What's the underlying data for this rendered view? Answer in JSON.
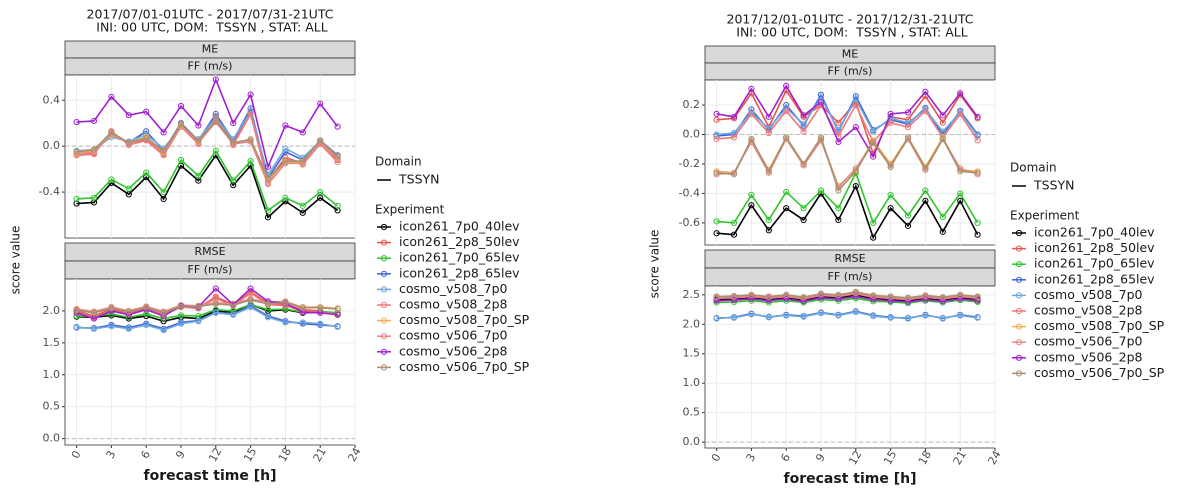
{
  "chart_data": [
    {
      "type": "line",
      "title": "2017/07/01-01UTC - 2017/07/31-21UTC",
      "subtitle": " INI: 00 UTC, DOM:  TSSYN , STAT: ALL",
      "xlabel": "forecast time [h]",
      "ylabel": "score value",
      "x": [
        0,
        1.5,
        3,
        4.5,
        6,
        7.5,
        9,
        10.5,
        12,
        13.5,
        15,
        16.5,
        18,
        19.5,
        21,
        22.5
      ],
      "xlim": [
        -1,
        24
      ],
      "xticks": [
        0,
        3,
        6,
        9,
        12,
        15,
        18,
        21,
        24
      ],
      "legend": {
        "domain_title": "Domain",
        "domain": "TSSYN",
        "title": "Experiment"
      },
      "series": [
        {
          "name": "icon261_7p0_40lev",
          "color": "#000000"
        },
        {
          "name": "icon261_2p8_50lev",
          "color": "#e8544e"
        },
        {
          "name": "icon261_7p0_65lev",
          "color": "#2ec52e"
        },
        {
          "name": "icon261_2p8_65lev",
          "color": "#3c64d8"
        },
        {
          "name": "cosmo_v508_7p0",
          "color": "#6fa8dc"
        },
        {
          "name": "cosmo_v508_2p8",
          "color": "#f07878"
        },
        {
          "name": "cosmo_v508_7p0_SP",
          "color": "#f0b050"
        },
        {
          "name": "cosmo_v506_7p0",
          "color": "#e88888"
        },
        {
          "name": "cosmo_v506_2p8",
          "color": "#a020d0"
        },
        {
          "name": "cosmo_v506_7p0_SP",
          "color": "#a89070"
        }
      ],
      "facets": [
        {
          "title": "ME",
          "unit": "FF (m/s)",
          "ylim": [
            -0.8,
            0.62
          ],
          "yticks": [
            -0.4,
            {
              "value": 0,
              "label": "0.0"
            },
            0.4
          ],
          "values": [
            [
              -0.5,
              -0.49,
              -0.32,
              -0.42,
              -0.27,
              -0.46,
              -0.17,
              -0.3,
              -0.08,
              -0.34,
              -0.17,
              -0.62,
              -0.48,
              -0.58,
              -0.45,
              -0.56
            ],
            [
              -0.07,
              -0.06,
              0.12,
              0.02,
              0.06,
              -0.07,
              0.18,
              0.03,
              0.26,
              0.02,
              0.3,
              -0.3,
              -0.1,
              -0.15,
              0.03,
              -0.12
            ],
            [
              -0.46,
              -0.45,
              -0.29,
              -0.37,
              -0.23,
              -0.4,
              -0.12,
              -0.26,
              -0.04,
              -0.3,
              -0.13,
              -0.56,
              -0.45,
              -0.52,
              -0.4,
              -0.52
            ],
            [
              -0.05,
              -0.05,
              0.1,
              0.03,
              0.13,
              -0.04,
              0.2,
              0.05,
              0.28,
              0.05,
              0.33,
              -0.28,
              -0.05,
              -0.12,
              0.05,
              -0.08
            ],
            [
              -0.04,
              -0.03,
              0.08,
              0.04,
              0.1,
              -0.02,
              0.17,
              0.06,
              0.25,
              0.06,
              0.3,
              -0.25,
              -0.02,
              -0.1,
              0.04,
              -0.1
            ],
            [
              -0.08,
              -0.07,
              0.13,
              0.01,
              0.05,
              -0.08,
              0.17,
              0.02,
              0.24,
              0.01,
              0.28,
              -0.32,
              -0.12,
              -0.16,
              0.02,
              -0.14
            ],
            [
              -0.06,
              -0.04,
              0.1,
              0.03,
              0.08,
              -0.05,
              0.18,
              0.04,
              0.22,
              0.03,
              0.05,
              -0.3,
              -0.14,
              -0.14,
              0.05,
              -0.1
            ],
            [
              -0.07,
              -0.05,
              0.11,
              0.02,
              0.07,
              -0.06,
              0.19,
              0.03,
              0.21,
              0.02,
              0.04,
              -0.33,
              -0.15,
              -0.15,
              0.03,
              -0.11
            ],
            [
              0.21,
              0.22,
              0.43,
              0.27,
              0.3,
              0.12,
              0.35,
              0.18,
              0.58,
              0.2,
              0.45,
              -0.18,
              0.18,
              0.12,
              0.37,
              0.17
            ],
            [
              -0.05,
              -0.03,
              0.12,
              0.03,
              0.07,
              -0.04,
              0.19,
              0.05,
              0.22,
              0.03,
              0.06,
              -0.28,
              -0.13,
              -0.13,
              0.05,
              -0.09
            ]
          ]
        },
        {
          "title": "RMSE",
          "unit": "FF (m/s)",
          "ylim": [
            -0.1,
            2.5
          ],
          "yticks": [
            {
              "value": 0,
              "label": "0.0"
            },
            0.5,
            {
              "value": 1,
              "label": "1.0"
            },
            1.5,
            {
              "value": 2,
              "label": "2.0"
            }
          ],
          "values": [
            [
              1.91,
              1.9,
              1.93,
              1.88,
              1.92,
              1.84,
              1.9,
              1.88,
              2.0,
              1.98,
              2.1,
              2.0,
              2.02,
              1.97,
              1.98,
              1.96
            ],
            [
              2.0,
              1.92,
              2.03,
              1.96,
              2.04,
              1.95,
              2.08,
              2.05,
              2.22,
              2.1,
              2.3,
              2.12,
              2.1,
              2.02,
              2.0,
              1.94
            ],
            [
              1.92,
              1.92,
              1.95,
              1.9,
              1.95,
              1.88,
              1.93,
              1.92,
              2.02,
              2.0,
              2.1,
              2.02,
              2.03,
              1.98,
              1.99,
              1.97
            ],
            [
              1.74,
              1.73,
              1.78,
              1.74,
              1.8,
              1.72,
              1.82,
              1.85,
              1.98,
              1.95,
              2.08,
              1.92,
              1.84,
              1.8,
              1.78,
              1.76
            ],
            [
              1.75,
              1.72,
              1.76,
              1.72,
              1.78,
              1.7,
              1.8,
              1.84,
              1.97,
              1.94,
              2.06,
              1.9,
              1.82,
              1.82,
              1.8,
              1.75
            ],
            [
              1.98,
              1.9,
              2.0,
              1.95,
              2.02,
              1.94,
              2.06,
              2.04,
              2.2,
              2.08,
              2.28,
              2.1,
              2.08,
              2.0,
              1.98,
              1.95
            ],
            [
              2.02,
              1.98,
              2.05,
              2.0,
              2.06,
              1.98,
              2.08,
              2.08,
              2.12,
              2.1,
              2.18,
              2.12,
              2.14,
              2.06,
              2.06,
              2.04
            ],
            [
              2.03,
              1.99,
              2.06,
              2.0,
              2.07,
              1.99,
              2.09,
              2.08,
              2.13,
              2.11,
              2.19,
              2.13,
              2.15,
              2.05,
              2.05,
              2.03
            ],
            [
              1.97,
              1.88,
              2.0,
              1.94,
              2.02,
              1.92,
              2.08,
              2.06,
              2.35,
              2.1,
              2.35,
              2.15,
              2.12,
              1.98,
              1.97,
              1.94
            ],
            [
              2.01,
              1.97,
              2.04,
              1.99,
              2.05,
              1.97,
              2.07,
              2.07,
              2.11,
              2.09,
              2.17,
              2.11,
              2.13,
              2.05,
              2.05,
              2.03
            ]
          ]
        }
      ]
    },
    {
      "type": "line",
      "title": "2017/12/01-01UTC - 2017/12/31-21UTC",
      "subtitle": " INI: 00 UTC, DOM:  TSSYN , STAT: ALL",
      "xlabel": "forecast time [h]",
      "ylabel": "score value",
      "x": [
        0,
        1.5,
        3,
        4.5,
        6,
        7.5,
        9,
        10.5,
        12,
        13.5,
        15,
        16.5,
        18,
        19.5,
        21,
        22.5
      ],
      "xlim": [
        -1,
        24
      ],
      "xticks": [
        0,
        3,
        6,
        9,
        12,
        15,
        18,
        21,
        24
      ],
      "legend": {
        "domain_title": "Domain",
        "domain": "TSSYN",
        "title": "Experiment"
      },
      "series": [
        {
          "name": "icon261_7p0_40lev",
          "color": "#000000"
        },
        {
          "name": "icon261_2p8_50lev",
          "color": "#e8544e"
        },
        {
          "name": "icon261_7p0_65lev",
          "color": "#2ec52e"
        },
        {
          "name": "icon261_2p8_65lev",
          "color": "#3c64d8"
        },
        {
          "name": "cosmo_v508_7p0",
          "color": "#6fa8dc"
        },
        {
          "name": "cosmo_v508_2p8",
          "color": "#f07878"
        },
        {
          "name": "cosmo_v508_7p0_SP",
          "color": "#f0b050"
        },
        {
          "name": "cosmo_v506_7p0",
          "color": "#e88888"
        },
        {
          "name": "cosmo_v506_2p8",
          "color": "#a020d0"
        },
        {
          "name": "cosmo_v506_7p0_SP",
          "color": "#a89070"
        }
      ],
      "facets": [
        {
          "title": "ME",
          "unit": "FF (m/s)",
          "ylim": [
            -0.75,
            0.37
          ],
          "yticks": [
            -0.6,
            -0.4,
            -0.2,
            {
              "value": 0,
              "label": "0.0"
            },
            0.2
          ],
          "values": [
            [
              -0.67,
              -0.68,
              -0.48,
              -0.65,
              -0.5,
              -0.58,
              -0.4,
              -0.58,
              -0.35,
              -0.7,
              -0.5,
              -0.62,
              -0.45,
              -0.66,
              -0.45,
              -0.68
            ],
            [
              0.1,
              0.11,
              0.28,
              0.05,
              0.3,
              0.12,
              0.2,
              0.08,
              0.22,
              -0.13,
              0.12,
              0.1,
              0.26,
              0.08,
              0.27,
              0.11
            ],
            [
              -0.59,
              -0.6,
              -0.41,
              -0.58,
              -0.39,
              -0.5,
              -0.38,
              -0.5,
              -0.26,
              -0.6,
              -0.41,
              -0.55,
              -0.38,
              -0.56,
              -0.4,
              -0.6
            ],
            [
              -0.01,
              0,
              0.17,
              0.03,
              0.2,
              0.06,
              0.27,
              0.02,
              0.26,
              0.03,
              0.1,
              0.07,
              0.18,
              0,
              0.16,
              0
            ],
            [
              0,
              0.01,
              0.15,
              0.04,
              0.18,
              0.07,
              0.25,
              0.03,
              0.24,
              0.02,
              0.11,
              0.08,
              0.17,
              0.02,
              0.15,
              -0.01
            ],
            [
              -0.03,
              -0.02,
              0.14,
              0.01,
              0.16,
              0.02,
              0.2,
              -0.01,
              0.2,
              -0.05,
              0.08,
              0.05,
              0.16,
              -0.02,
              0.14,
              -0.04
            ],
            [
              -0.25,
              -0.26,
              -0.04,
              -0.24,
              -0.02,
              -0.2,
              -0.03,
              -0.35,
              -0.24,
              -0.04,
              -0.2,
              -0.02,
              -0.22,
              -0.02,
              -0.24,
              -0.25
            ],
            [
              -0.27,
              -0.26,
              -0.05,
              -0.26,
              -0.03,
              -0.21,
              -0.04,
              -0.36,
              -0.23,
              -0.06,
              -0.21,
              -0.03,
              -0.24,
              -0.03,
              -0.23,
              -0.27
            ],
            [
              0.14,
              0.12,
              0.31,
              0.12,
              0.33,
              0.13,
              0.22,
              -0.05,
              0.05,
              -0.15,
              0.14,
              0.15,
              0.29,
              0.13,
              0.28,
              0.12
            ],
            [
              -0.26,
              -0.27,
              -0.03,
              -0.25,
              -0.02,
              -0.2,
              -0.02,
              -0.38,
              -0.25,
              -0.05,
              -0.22,
              -0.02,
              -0.23,
              -0.03,
              -0.25,
              -0.26
            ]
          ]
        },
        {
          "title": "RMSE",
          "unit": "FF (m/s)",
          "ylim": [
            -0.1,
            2.65
          ],
          "yticks": [
            {
              "value": 0,
              "label": "0.0"
            },
            0.5,
            {
              "value": 1,
              "label": "1.0"
            },
            1.5,
            {
              "value": 2,
              "label": "2.0"
            },
            2.5
          ],
          "values": [
            [
              2.42,
              2.43,
              2.46,
              2.42,
              2.45,
              2.41,
              2.47,
              2.45,
              2.5,
              2.44,
              2.42,
              2.4,
              2.44,
              2.41,
              2.45,
              2.42
            ],
            [
              2.45,
              2.46,
              2.48,
              2.45,
              2.48,
              2.44,
              2.5,
              2.48,
              2.53,
              2.47,
              2.45,
              2.43,
              2.47,
              2.44,
              2.48,
              2.45
            ],
            [
              2.37,
              2.38,
              2.4,
              2.37,
              2.4,
              2.37,
              2.42,
              2.4,
              2.44,
              2.39,
              2.38,
              2.36,
              2.4,
              2.37,
              2.41,
              2.38
            ],
            [
              2.1,
              2.12,
              2.18,
              2.12,
              2.16,
              2.14,
              2.2,
              2.16,
              2.22,
              2.15,
              2.12,
              2.1,
              2.16,
              2.1,
              2.16,
              2.12
            ],
            [
              2.11,
              2.11,
              2.17,
              2.13,
              2.15,
              2.13,
              2.19,
              2.15,
              2.21,
              2.14,
              2.11,
              2.11,
              2.15,
              2.11,
              2.15,
              2.11
            ],
            [
              2.44,
              2.45,
              2.47,
              2.44,
              2.47,
              2.43,
              2.49,
              2.47,
              2.52,
              2.46,
              2.44,
              2.42,
              2.46,
              2.43,
              2.47,
              2.44
            ],
            [
              2.46,
              2.47,
              2.49,
              2.46,
              2.49,
              2.45,
              2.51,
              2.49,
              2.54,
              2.48,
              2.46,
              2.44,
              2.48,
              2.45,
              2.49,
              2.46
            ],
            [
              2.45,
              2.46,
              2.48,
              2.46,
              2.48,
              2.45,
              2.5,
              2.48,
              2.53,
              2.47,
              2.45,
              2.43,
              2.47,
              2.44,
              2.48,
              2.45
            ],
            [
              2.4,
              2.41,
              2.43,
              2.4,
              2.43,
              2.39,
              2.45,
              2.43,
              2.47,
              2.42,
              2.4,
              2.38,
              2.42,
              2.39,
              2.43,
              2.4
            ],
            [
              2.47,
              2.48,
              2.5,
              2.47,
              2.5,
              2.46,
              2.52,
              2.5,
              2.55,
              2.49,
              2.47,
              2.45,
              2.49,
              2.46,
              2.5,
              2.47
            ]
          ]
        }
      ]
    }
  ]
}
